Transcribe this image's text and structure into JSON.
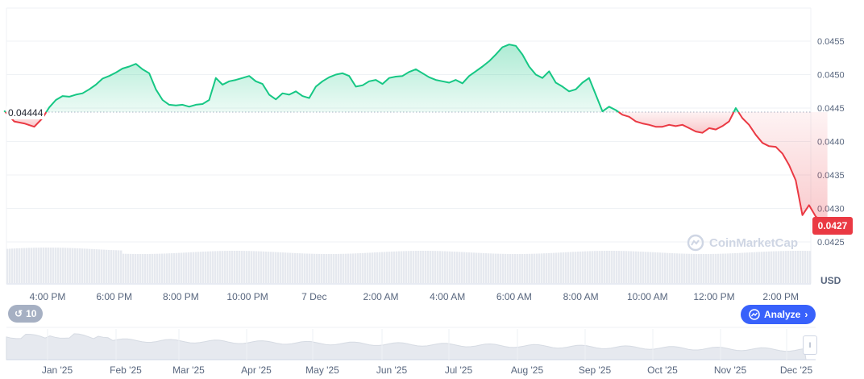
{
  "chart_data": {
    "type": "area",
    "currency": "USD",
    "reference_value": 0.04444,
    "reference_label": "0.04444",
    "last_value": 0.0427,
    "last_label": "0.0427",
    "ylim": [
      0.04245,
      0.04593
    ],
    "y_ticks": [
      "0.0455",
      "0.0450",
      "0.0445",
      "0.0440",
      "0.0435",
      "0.0430",
      "0.0425"
    ],
    "x_tick_labels": [
      "4:00 PM",
      "6:00 PM",
      "8:00 PM",
      "10:00 PM",
      "7 Dec",
      "2:00 AM",
      "4:00 AM",
      "6:00 AM",
      "8:00 AM",
      "10:00 AM",
      "12:00 PM",
      "2:00 PM"
    ],
    "x_hours": [
      0,
      2,
      4,
      6,
      8,
      10,
      12,
      14,
      16,
      18,
      20,
      22
    ],
    "series": [
      {
        "x_hours": [
          -1.3,
          -1.0,
          -0.7,
          -0.4,
          -0.15,
          0.05,
          0.25,
          0.45,
          0.65,
          0.85,
          1.05,
          1.25,
          1.45,
          1.65,
          1.85,
          2.05,
          2.25,
          2.45,
          2.65,
          2.85,
          3.05,
          3.25,
          3.45,
          3.65,
          3.85,
          4.05,
          4.25,
          4.45,
          4.65,
          4.85,
          5.05,
          5.25,
          5.45,
          5.65,
          5.85,
          6.05,
          6.25,
          6.45,
          6.65,
          6.85,
          7.05,
          7.25,
          7.45,
          7.65,
          7.85,
          8.05,
          8.25,
          8.45,
          8.65,
          8.85,
          9.05,
          9.25,
          9.45,
          9.65,
          9.85,
          10.05,
          10.25,
          10.45,
          10.65,
          10.85,
          11.05,
          11.25,
          11.45,
          11.65,
          11.85,
          12.05,
          12.25,
          12.45,
          12.65,
          12.85,
          13.05,
          13.25,
          13.45,
          13.65,
          13.85,
          14.05,
          14.25,
          14.45,
          14.65,
          14.85,
          15.05,
          15.25,
          15.45,
          15.65,
          15.85,
          16.05,
          16.25,
          16.45,
          16.65,
          16.85,
          17.05,
          17.25,
          17.45,
          17.65,
          17.85,
          18.05,
          18.25,
          18.45,
          18.65,
          18.85,
          19.05,
          19.25,
          19.45,
          19.65,
          19.85,
          20.05,
          20.25,
          20.45,
          20.65,
          20.85,
          21.05,
          21.25,
          21.45,
          21.65,
          21.85,
          22.05,
          22.25,
          22.45,
          22.65,
          22.85,
          23.05,
          23.25,
          23.4
        ],
        "values": [
          0.04446,
          0.0443,
          0.04427,
          0.04422,
          0.04435,
          0.04451,
          0.04462,
          0.04468,
          0.04467,
          0.0447,
          0.04472,
          0.04478,
          0.04485,
          0.04494,
          0.04498,
          0.04503,
          0.04509,
          0.04512,
          0.04516,
          0.04508,
          0.04502,
          0.04478,
          0.04462,
          0.04455,
          0.04454,
          0.04455,
          0.04452,
          0.04455,
          0.04456,
          0.04462,
          0.04495,
          0.04485,
          0.0449,
          0.04492,
          0.04495,
          0.04498,
          0.0449,
          0.04486,
          0.0447,
          0.04463,
          0.04472,
          0.0447,
          0.04475,
          0.04468,
          0.04465,
          0.04482,
          0.0449,
          0.04496,
          0.045,
          0.04502,
          0.04498,
          0.04482,
          0.04484,
          0.0449,
          0.04492,
          0.04486,
          0.04495,
          0.04497,
          0.04498,
          0.04504,
          0.04508,
          0.04502,
          0.04496,
          0.04492,
          0.0449,
          0.04488,
          0.04492,
          0.04487,
          0.04498,
          0.04505,
          0.04512,
          0.0452,
          0.0453,
          0.04541,
          0.04545,
          0.04543,
          0.0453,
          0.04512,
          0.045,
          0.04495,
          0.04505,
          0.04488,
          0.04482,
          0.04475,
          0.04478,
          0.04488,
          0.04495,
          0.0447,
          0.04445,
          0.04452,
          0.04447,
          0.0444,
          0.04437,
          0.0443,
          0.04427,
          0.04425,
          0.04422,
          0.04422,
          0.04425,
          0.04423,
          0.04425,
          0.0442,
          0.04415,
          0.04413,
          0.0442,
          0.04418,
          0.04423,
          0.0443,
          0.0445,
          0.04435,
          0.04425,
          0.0441,
          0.04398,
          0.04393,
          0.04392,
          0.04382,
          0.04365,
          0.04342,
          0.0429,
          0.04305,
          0.04288,
          0.0428,
          0.0427
        ]
      }
    ],
    "volume_hint": "uniform volume bars beneath price",
    "navigator_months": [
      "Jan '25",
      "Feb '25",
      "Mar '25",
      "Apr '25",
      "May '25",
      "Jun '25",
      "Jul '25",
      "Aug '25",
      "Sep '25",
      "Oct '25",
      "Nov '25",
      "Dec '25"
    ]
  },
  "ui": {
    "unit_label": "USD",
    "watermark": "CoinMarketCap",
    "badge_count": "10",
    "analyze_label": "Analyze"
  },
  "colors": {
    "up": "#16c784",
    "down": "#ea3943",
    "brand": "#3861fb",
    "grid": "#eff2f5"
  }
}
